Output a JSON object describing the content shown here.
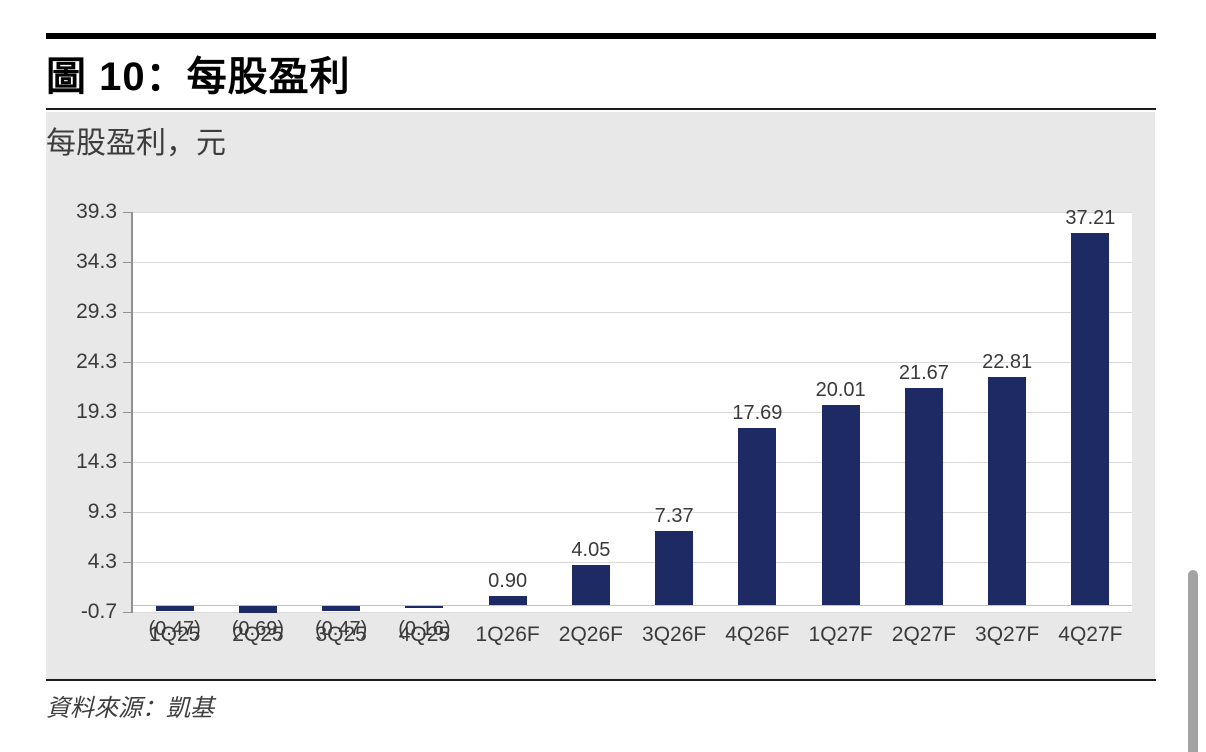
{
  "figure": {
    "title": "圖 10：每股盈利"
  },
  "source": {
    "text": "資料來源：凱基"
  },
  "chart_data": {
    "type": "bar",
    "title": "每股盈利，元",
    "categories": [
      "1Q25",
      "2Q25",
      "3Q25",
      "4Q25",
      "1Q26F",
      "2Q26F",
      "3Q26F",
      "4Q26F",
      "1Q27F",
      "2Q27F",
      "3Q27F",
      "4Q27F"
    ],
    "values": [
      -0.47,
      -0.69,
      -0.47,
      -0.16,
      0.9,
      4.05,
      7.37,
      17.69,
      20.01,
      21.67,
      22.81,
      37.21
    ],
    "value_labels": [
      "(0.47)",
      "(0.69)",
      "(0.47)",
      "(0.16)",
      "0.90",
      "4.05",
      "7.37",
      "17.69",
      "20.01",
      "21.67",
      "22.81",
      "37.21"
    ],
    "y_ticks": [
      39.3,
      34.3,
      29.3,
      24.3,
      19.3,
      14.3,
      9.3,
      4.3,
      -0.7
    ],
    "ylim": [
      -0.7,
      39.3
    ],
    "xlabel": "",
    "ylabel": "",
    "grid": true,
    "legend": false,
    "bar_color": "#1e2a63"
  }
}
